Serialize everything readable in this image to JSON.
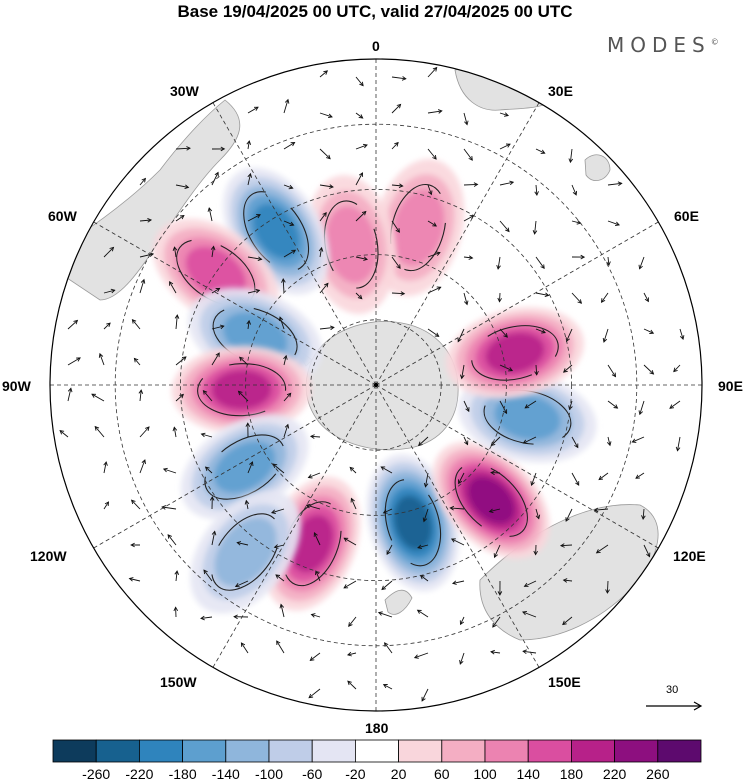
{
  "title": "Base 19/04/2025 00 UTC, valid 27/04/2025 00 UTC",
  "brand": "MODES",
  "brand_mark": "©",
  "longitude_labels": {
    "l0": "0",
    "l30e": "30E",
    "l60e": "60E",
    "l90e": "90E",
    "l120e": "120E",
    "l150e": "150E",
    "l180": "180",
    "l150w": "150W",
    "l120w": "120W",
    "l90w": "90W",
    "l60w": "60W",
    "l30w": "30W"
  },
  "reference_vector": "30",
  "colorbar": {
    "ticks": [
      "-260",
      "-220",
      "-180",
      "-140",
      "-100",
      "-60",
      "-20",
      "20",
      "60",
      "100",
      "140",
      "180",
      "220",
      "260"
    ],
    "colors": [
      "#0d3b5c",
      "#17618f",
      "#2f84bd",
      "#5d9fcf",
      "#8fb6dc",
      "#bfcde8",
      "#e4e5f3",
      "#ffffff",
      "#f9d6dc",
      "#f4aec3",
      "#ec83b1",
      "#da4ea0",
      "#b72189",
      "#8d0f7f",
      "#5d0a6e"
    ]
  },
  "anomaly_centers": [
    {
      "lon": 15,
      "lat": -55,
      "value": -220
    },
    {
      "lon": 45,
      "lat": -50,
      "value": 210
    },
    {
      "lon": 78,
      "lat": -52,
      "value": -150
    },
    {
      "lon": 103,
      "lat": -55,
      "value": 200
    },
    {
      "lon": 165,
      "lat": -50,
      "value": 120
    },
    {
      "lon": -170,
      "lat": -55,
      "value": 110
    },
    {
      "lon": -147,
      "lat": -45,
      "value": -190
    },
    {
      "lon": -125,
      "lat": -42,
      "value": 140
    },
    {
      "lon": -112,
      "lat": -58,
      "value": -160
    },
    {
      "lon": -88,
      "lat": -57,
      "value": 190
    },
    {
      "lon": -58,
      "lat": -52,
      "value": -160
    },
    {
      "lon": -22,
      "lat": -48,
      "value": 200
    },
    {
      "lon": -38,
      "lat": -38,
      "value": -90
    }
  ]
}
